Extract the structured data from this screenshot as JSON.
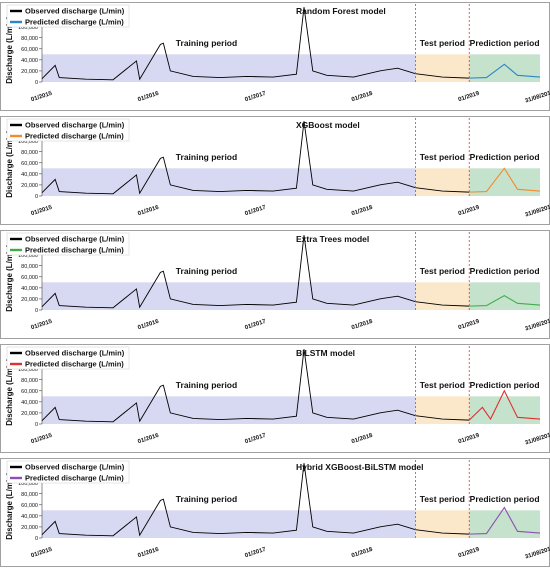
{
  "colors": {
    "observed": "#000000",
    "training_shade": "#c9cbee",
    "test_shade": "#fbe6c4",
    "prediction_shade": "#bfe0c6",
    "divider": "#e53935",
    "frame": "#8a8a8a"
  },
  "shared": {
    "ylabel": "Discharge (L/min)",
    "yticks": [
      "0",
      "20,000",
      "40,000",
      "60,000",
      "80,000",
      "100,000",
      "120,000"
    ],
    "xticks": [
      "01/2015",
      "01/2016",
      "01/2017",
      "01/2018",
      "01/2019",
      "31/08/2019"
    ],
    "observed_label": "Observed discharge (L/min)",
    "period_labels": {
      "training": "Training period",
      "test": "Test period",
      "prediction": "Prediction period"
    },
    "period_bounds": {
      "start": "01/2015",
      "test_start": "07/2018",
      "prediction_start": "01/2019",
      "end": "31/08/2019"
    }
  },
  "chart_data": [
    {
      "type": "line",
      "title": "Random Forest model",
      "series": [
        {
          "name": "Observed discharge (L/min)",
          "color": "#000000"
        },
        {
          "name": "Predicted discharge (L/min)",
          "color": "#2a86c5"
        }
      ],
      "ylim": [
        0,
        130000
      ],
      "observed_points": [
        [
          "2015-01-01",
          6000
        ],
        [
          "2015-02-15",
          30000
        ],
        [
          "2015-03-01",
          8000
        ],
        [
          "2015-06-01",
          5000
        ],
        [
          "2015-09-01",
          4000
        ],
        [
          "2015-11-20",
          38000
        ],
        [
          "2015-12-01",
          5000
        ],
        [
          "2016-02-10",
          68000
        ],
        [
          "2016-02-20",
          70000
        ],
        [
          "2016-03-15",
          20000
        ],
        [
          "2016-06-01",
          10000
        ],
        [
          "2016-09-01",
          8000
        ],
        [
          "2016-12-01",
          10000
        ],
        [
          "2017-03-01",
          9000
        ],
        [
          "2017-05-20",
          14000
        ],
        [
          "2017-06-15",
          135000
        ],
        [
          "2017-07-15",
          20000
        ],
        [
          "2017-09-01",
          12000
        ],
        [
          "2017-12-01",
          9000
        ],
        [
          "2018-03-01",
          20000
        ],
        [
          "2018-05-01",
          25000
        ],
        [
          "2018-07-01",
          15000
        ],
        [
          "2018-10-01",
          9000
        ],
        [
          "2019-01-01",
          7000
        ]
      ],
      "predicted_points": [
        [
          "2019-01-01",
          7000
        ],
        [
          "2019-03-01",
          8000
        ],
        [
          "2019-05-01",
          32000
        ],
        [
          "2019-06-15",
          12000
        ],
        [
          "2019-08-31",
          9000
        ]
      ]
    },
    {
      "type": "line",
      "title": "XGBoost model",
      "series": [
        {
          "name": "Observed discharge (L/min)",
          "color": "#000000"
        },
        {
          "name": "Predicted discharge (L/min)",
          "color": "#f28a2e"
        }
      ],
      "ylim": [
        0,
        130000
      ],
      "observed_points": [
        [
          "2015-01-01",
          6000
        ],
        [
          "2015-02-15",
          30000
        ],
        [
          "2015-03-01",
          8000
        ],
        [
          "2015-06-01",
          5000
        ],
        [
          "2015-09-01",
          4000
        ],
        [
          "2015-11-20",
          38000
        ],
        [
          "2015-12-01",
          5000
        ],
        [
          "2016-02-10",
          68000
        ],
        [
          "2016-02-20",
          70000
        ],
        [
          "2016-03-15",
          20000
        ],
        [
          "2016-06-01",
          10000
        ],
        [
          "2016-09-01",
          8000
        ],
        [
          "2016-12-01",
          10000
        ],
        [
          "2017-03-01",
          9000
        ],
        [
          "2017-05-20",
          14000
        ],
        [
          "2017-06-15",
          135000
        ],
        [
          "2017-07-15",
          20000
        ],
        [
          "2017-09-01",
          12000
        ],
        [
          "2017-12-01",
          9000
        ],
        [
          "2018-03-01",
          20000
        ],
        [
          "2018-05-01",
          25000
        ],
        [
          "2018-07-01",
          15000
        ],
        [
          "2018-10-01",
          9000
        ],
        [
          "2019-01-01",
          7000
        ]
      ],
      "predicted_points": [
        [
          "2019-01-01",
          7000
        ],
        [
          "2019-03-01",
          8000
        ],
        [
          "2019-05-01",
          50000
        ],
        [
          "2019-06-15",
          12000
        ],
        [
          "2019-08-31",
          9000
        ]
      ]
    },
    {
      "type": "line",
      "title": "Extra Trees model",
      "series": [
        {
          "name": "Observed discharge (L/min)",
          "color": "#000000"
        },
        {
          "name": "Predicted discharge (L/min)",
          "color": "#3fae49"
        }
      ],
      "ylim": [
        0,
        130000
      ],
      "observed_points": [
        [
          "2015-01-01",
          6000
        ],
        [
          "2015-02-15",
          30000
        ],
        [
          "2015-03-01",
          8000
        ],
        [
          "2015-06-01",
          5000
        ],
        [
          "2015-09-01",
          4000
        ],
        [
          "2015-11-20",
          38000
        ],
        [
          "2015-12-01",
          5000
        ],
        [
          "2016-02-10",
          68000
        ],
        [
          "2016-02-20",
          70000
        ],
        [
          "2016-03-15",
          20000
        ],
        [
          "2016-06-01",
          10000
        ],
        [
          "2016-09-01",
          8000
        ],
        [
          "2016-12-01",
          10000
        ],
        [
          "2017-03-01",
          9000
        ],
        [
          "2017-05-20",
          14000
        ],
        [
          "2017-06-15",
          135000
        ],
        [
          "2017-07-15",
          20000
        ],
        [
          "2017-09-01",
          12000
        ],
        [
          "2017-12-01",
          9000
        ],
        [
          "2018-03-01",
          20000
        ],
        [
          "2018-05-01",
          25000
        ],
        [
          "2018-07-01",
          15000
        ],
        [
          "2018-10-01",
          9000
        ],
        [
          "2019-01-01",
          7000
        ]
      ],
      "predicted_points": [
        [
          "2019-01-01",
          7000
        ],
        [
          "2019-03-01",
          8000
        ],
        [
          "2019-05-01",
          26000
        ],
        [
          "2019-06-15",
          12000
        ],
        [
          "2019-08-31",
          9000
        ]
      ]
    },
    {
      "type": "line",
      "title": "BiLSTM model",
      "series": [
        {
          "name": "Observed discharge (L/min)",
          "color": "#000000"
        },
        {
          "name": "Predicted discharge (L/min)",
          "color": "#e02f2f"
        }
      ],
      "ylim": [
        0,
        130000
      ],
      "observed_points": [
        [
          "2015-01-01",
          6000
        ],
        [
          "2015-02-15",
          30000
        ],
        [
          "2015-03-01",
          8000
        ],
        [
          "2015-06-01",
          5000
        ],
        [
          "2015-09-01",
          4000
        ],
        [
          "2015-11-20",
          38000
        ],
        [
          "2015-12-01",
          5000
        ],
        [
          "2016-02-10",
          68000
        ],
        [
          "2016-02-20",
          70000
        ],
        [
          "2016-03-15",
          20000
        ],
        [
          "2016-06-01",
          10000
        ],
        [
          "2016-09-01",
          8000
        ],
        [
          "2016-12-01",
          10000
        ],
        [
          "2017-03-01",
          9000
        ],
        [
          "2017-05-20",
          14000
        ],
        [
          "2017-06-15",
          135000
        ],
        [
          "2017-07-15",
          20000
        ],
        [
          "2017-09-01",
          12000
        ],
        [
          "2017-12-01",
          9000
        ],
        [
          "2018-03-01",
          20000
        ],
        [
          "2018-05-01",
          25000
        ],
        [
          "2018-07-01",
          15000
        ],
        [
          "2018-10-01",
          9000
        ],
        [
          "2019-01-01",
          7000
        ]
      ],
      "predicted_points": [
        [
          "2019-01-01",
          7000
        ],
        [
          "2019-02-15",
          30000
        ],
        [
          "2019-03-15",
          9000
        ],
        [
          "2019-05-01",
          60000
        ],
        [
          "2019-06-15",
          12000
        ],
        [
          "2019-08-31",
          9000
        ]
      ]
    },
    {
      "type": "line",
      "title": "Hybrid XGBoost-BiLSTM model",
      "series": [
        {
          "name": "Observed discharge (L/min)",
          "color": "#000000"
        },
        {
          "name": "Predicted discharge (L/min)",
          "color": "#8b4fb5"
        }
      ],
      "ylim": [
        0,
        130000
      ],
      "observed_points": [
        [
          "2015-01-01",
          6000
        ],
        [
          "2015-02-15",
          30000
        ],
        [
          "2015-03-01",
          8000
        ],
        [
          "2015-06-01",
          5000
        ],
        [
          "2015-09-01",
          4000
        ],
        [
          "2015-11-20",
          38000
        ],
        [
          "2015-12-01",
          5000
        ],
        [
          "2016-02-10",
          68000
        ],
        [
          "2016-02-20",
          70000
        ],
        [
          "2016-03-15",
          20000
        ],
        [
          "2016-06-01",
          10000
        ],
        [
          "2016-09-01",
          8000
        ],
        [
          "2016-12-01",
          10000
        ],
        [
          "2017-03-01",
          9000
        ],
        [
          "2017-05-20",
          14000
        ],
        [
          "2017-06-15",
          135000
        ],
        [
          "2017-07-15",
          20000
        ],
        [
          "2017-09-01",
          12000
        ],
        [
          "2017-12-01",
          9000
        ],
        [
          "2018-03-01",
          20000
        ],
        [
          "2018-05-01",
          25000
        ],
        [
          "2018-07-01",
          15000
        ],
        [
          "2018-10-01",
          9000
        ],
        [
          "2019-01-01",
          7000
        ]
      ],
      "predicted_points": [
        [
          "2019-01-01",
          7000
        ],
        [
          "2019-03-01",
          8000
        ],
        [
          "2019-05-01",
          55000
        ],
        [
          "2019-06-15",
          12000
        ],
        [
          "2019-08-31",
          9000
        ]
      ]
    }
  ]
}
